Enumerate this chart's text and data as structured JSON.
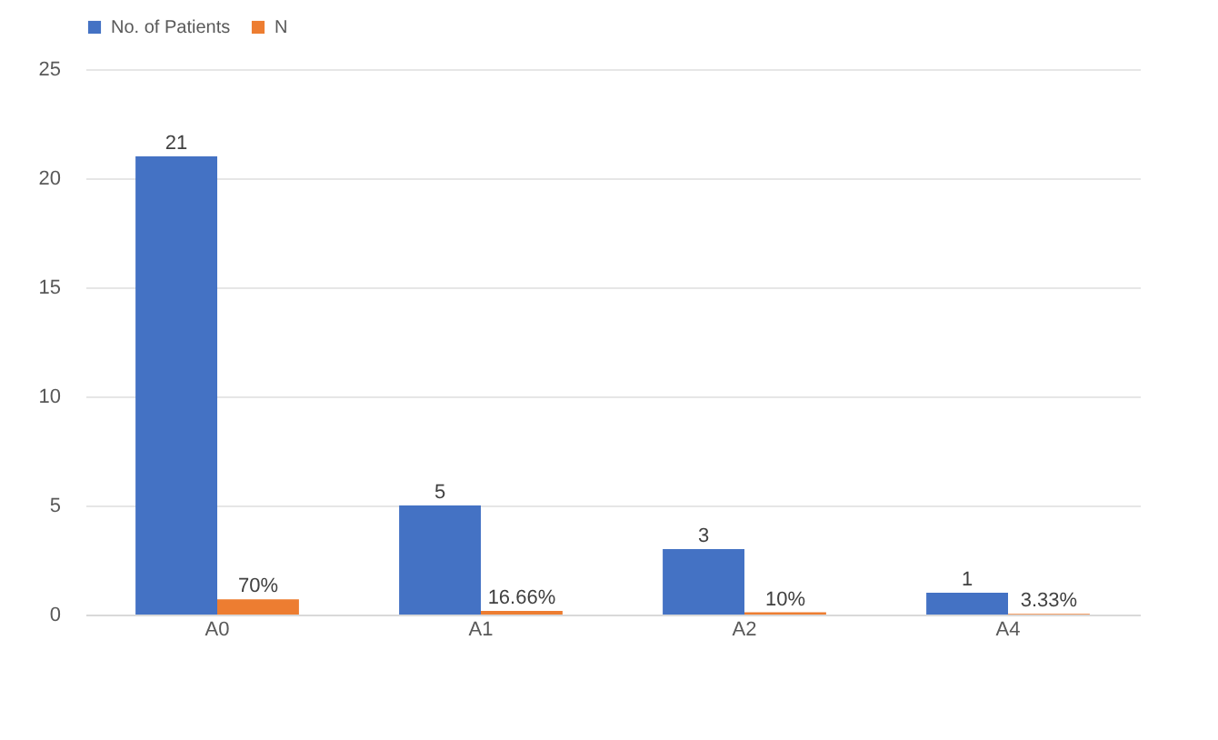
{
  "chart_data": {
    "type": "bar",
    "categories": [
      "A0",
      "A1",
      "A2",
      "A4"
    ],
    "series": [
      {
        "name": "No. of Patients",
        "color": "#4472c4",
        "values": [
          21,
          5,
          3,
          1
        ],
        "value_labels": [
          "21",
          "5",
          "3",
          "1"
        ]
      },
      {
        "name": "N",
        "color": "#ed7d31",
        "values": [
          0.7,
          0.1666,
          0.1,
          0.0333
        ],
        "value_labels": [
          "70%",
          "16.66%",
          "10%",
          "3.33%"
        ]
      }
    ],
    "ylim": [
      0,
      25
    ],
    "yticks": [
      0,
      5,
      10,
      15,
      20,
      25
    ],
    "grid": "y",
    "legend": "top"
  }
}
